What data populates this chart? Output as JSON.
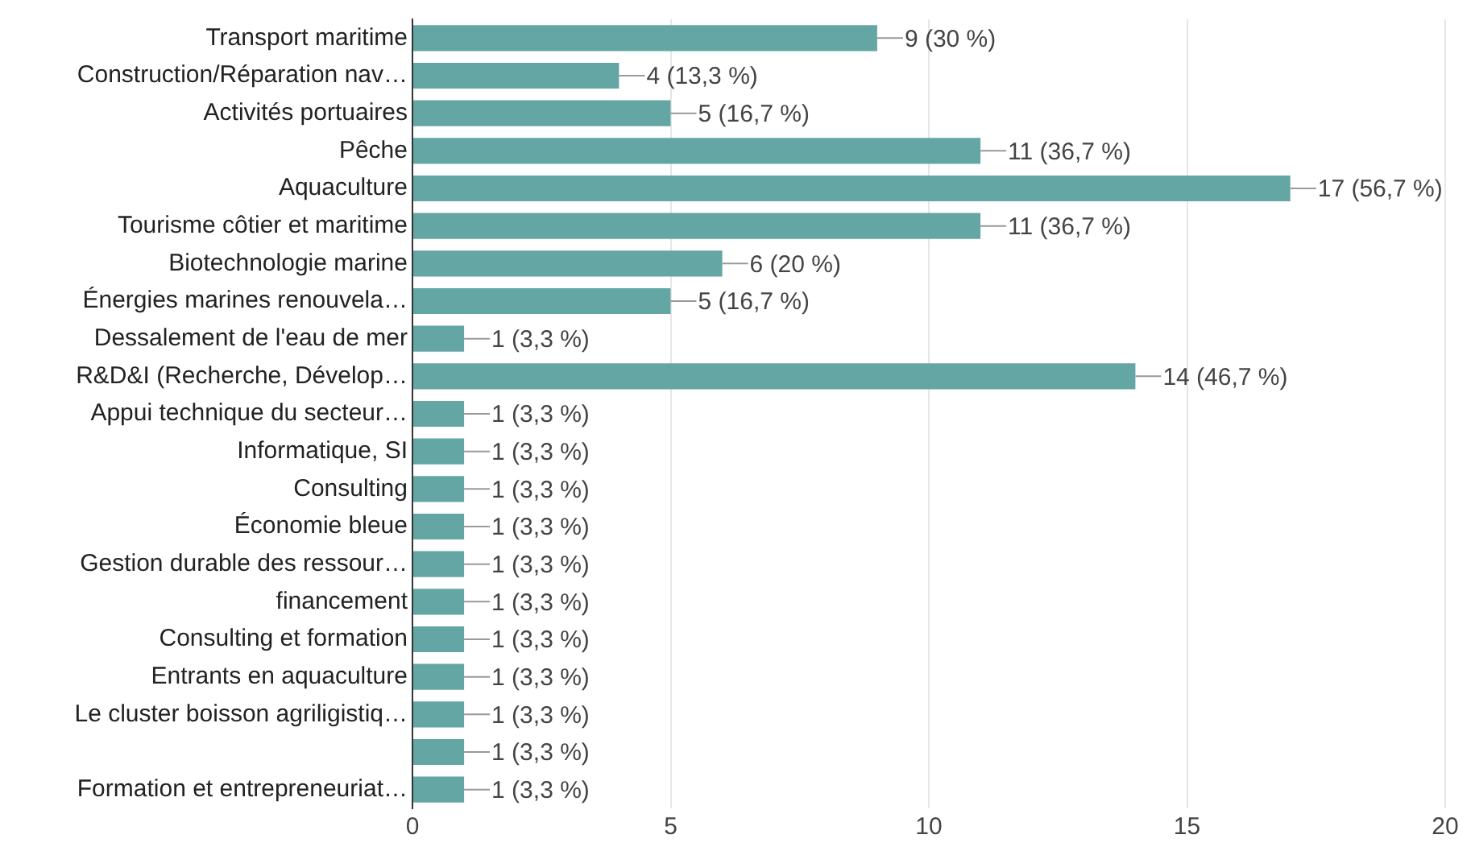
{
  "chart_data": {
    "type": "bar",
    "orientation": "horizontal",
    "categories": [
      "Transport maritime",
      "Construction/Réparation nav…",
      "Activités portuaires",
      "Pêche",
      "Aquaculture",
      "Tourisme côtier et maritime",
      "Biotechnologie marine",
      "Énergies marines renouvela…",
      "Dessalement de l'eau de mer",
      "R&D&I (Recherche, Dévelop…",
      "Appui technique du secteur…",
      "Informatique, SI",
      "Consulting",
      "Économie bleue",
      "Gestion durable des ressour…",
      "financement",
      "Consulting et formation",
      "Entrants en aquaculture",
      "Le cluster boisson agriligistiq…",
      null,
      "Formation et entrepreneuriat…"
    ],
    "values": [
      9,
      4,
      5,
      11,
      17,
      11,
      6,
      5,
      1,
      14,
      1,
      1,
      1,
      1,
      1,
      1,
      1,
      1,
      1,
      1,
      1
    ],
    "value_labels": [
      "9 (30 %)",
      "4 (13,3 %)",
      "5 (16,7 %)",
      "11 (36,7 %)",
      "17 (56,7 %)",
      "11 (36,7 %)",
      "6 (20 %)",
      "5 (16,7 %)",
      "1 (3,3 %)",
      "14 (46,7 %)",
      "1 (3,3 %)",
      "1 (3,3 %)",
      "1 (3,3 %)",
      "1 (3,3 %)",
      "1 (3,3 %)",
      "1 (3,3 %)",
      "1 (3,3 %)",
      "1 (3,3 %)",
      "1 (3,3 %)",
      "1 (3,3 %)",
      "1 (3,3 %)"
    ],
    "color": "#64a6a4",
    "xlim": [
      0,
      20
    ],
    "xticks": [
      0,
      5,
      10,
      15,
      20
    ],
    "grid": "x"
  }
}
